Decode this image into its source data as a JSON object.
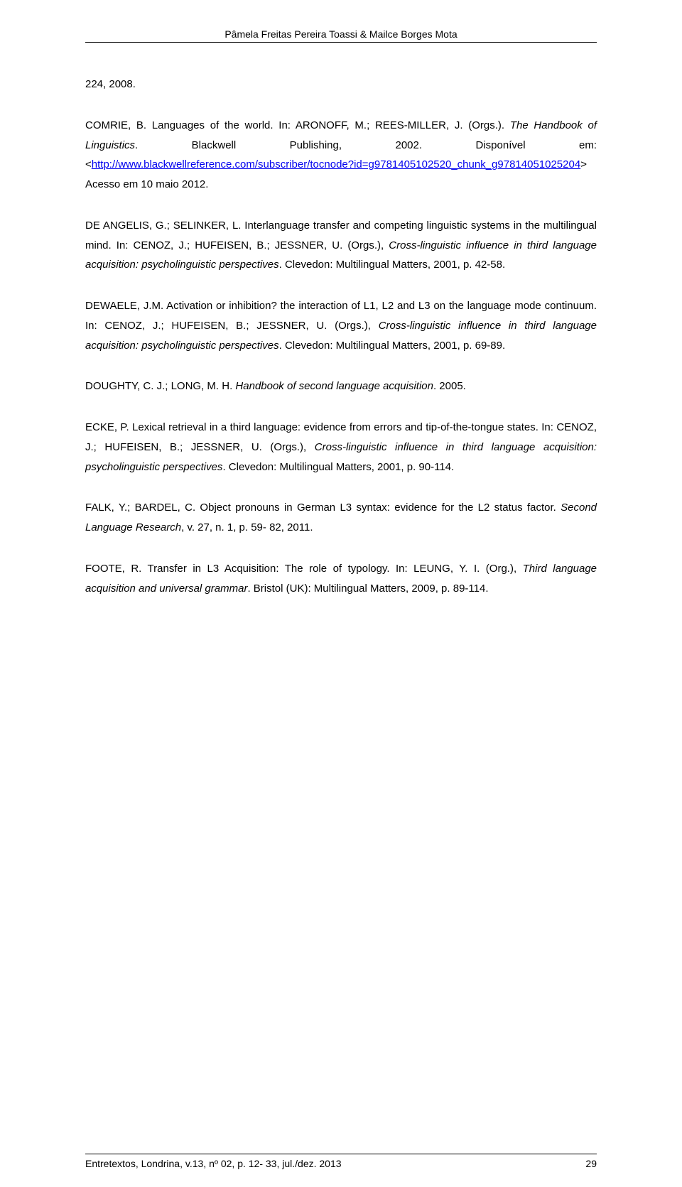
{
  "header": {
    "authors": "Pâmela Freitas Pereira Toassi & Mailce Borges Mota"
  },
  "refs": {
    "r1_leading": "224, 2008.",
    "r2_before_link": "COMRIE, B. Languages of the world. In: ARONOFF, M.; REES-MILLER, J. (Orgs.). ",
    "r2_italic": "The Handbook of Linguistics",
    "r2_after_italic": ". Blackwell Publishing, 2002. Disponível em: <",
    "r2_link": "http://www.blackwellreference.com/subscriber/tocnode?id=g9781405102520_chunk_g97814051025204",
    "r2_after_link": "> Acesso em 10 maio 2012.",
    "r3_before_italic": "DE ANGELIS, G.; SELINKER, L. Interlanguage transfer and competing linguistic systems in the multilingual mind. In: CENOZ, J.; HUFEISEN, B.; JESSNER, U. (Orgs.), ",
    "r3_italic": "Cross-linguistic influence in third language acquisition: psycholinguistic perspectives",
    "r3_after_italic": ". Clevedon: Multilingual Matters, 2001, p. 42-58.",
    "r4_before_italic": "DEWAELE, J.M. Activation or inhibition? the interaction of L1, L2 and L3 on the language mode continuum. In: CENOZ, J.; HUFEISEN, B.; JESSNER, U. (Orgs.), ",
    "r4_italic": "Cross-linguistic influence in third language acquisition: psycholinguistic perspectives",
    "r4_after_italic": ". Clevedon: Multilingual Matters, 2001, p. 69-89.",
    "r5_before_italic": "DOUGHTY, C. J.; LONG, M. H. ",
    "r5_italic": "Handbook of second language acquisition",
    "r5_after_italic": ". 2005.",
    "r6_before_italic": "ECKE, P. Lexical retrieval in a third language: evidence from errors and tip-of-the-tongue states. In: CENOZ, J.; HUFEISEN, B.; JESSNER, U. (Orgs.), ",
    "r6_italic": "Cross-linguistic influence in third language acquisition: psycholinguistic perspectives",
    "r6_after_italic": ". Clevedon: Multilingual Matters, 2001, p. 90-114.",
    "r7_before_italic": "FALK, Y.; BARDEL, C. Object pronouns in German L3 syntax: evidence for the L2 status factor. ",
    "r7_italic": "Second Language Research",
    "r7_after_italic": ", v. 27, n. 1, p. 59- 82, 2011.",
    "r8_before_italic": "FOOTE, R. Transfer in L3 Acquisition: The role of typology. In: LEUNG, Y. I. (Org.), ",
    "r8_italic": "Third language acquisition and universal grammar",
    "r8_after_italic": ". Bristol (UK): Multilingual Matters, 2009, p. 89-114."
  },
  "footer": {
    "citation": "Entretextos, Londrina, v.13, nº 02, p. 12- 33, jul./dez. 2013",
    "page_number": "29"
  }
}
